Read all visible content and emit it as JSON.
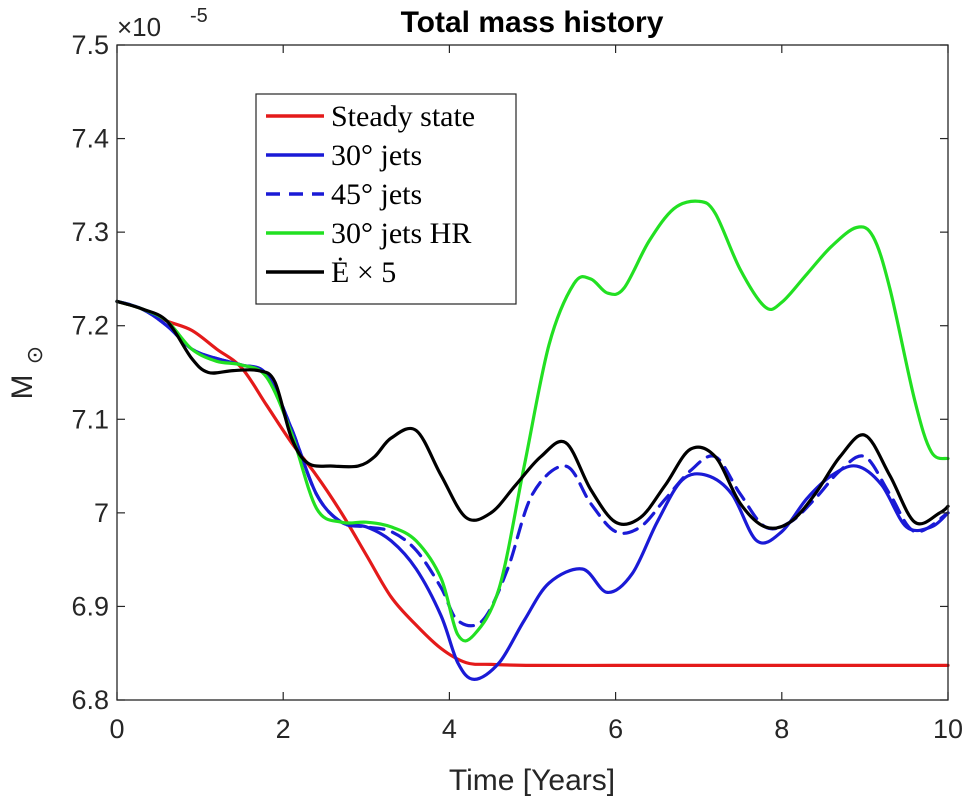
{
  "chart_data": {
    "type": "line",
    "title": "Total mass history",
    "xlabel": "Time [Years]",
    "ylabel": "M",
    "ylabel_sub": "⊙",
    "exponent": {
      "base": "×10",
      "power": "-5"
    },
    "xlim": [
      0,
      10
    ],
    "ylim": [
      6.8,
      7.5
    ],
    "xticks": [
      0,
      2,
      4,
      6,
      8,
      10
    ],
    "xtick_labels": [
      "0",
      "2",
      "4",
      "6",
      "8",
      "10"
    ],
    "yticks": [
      6.8,
      6.9,
      7.0,
      7.1,
      7.2,
      7.3,
      7.4,
      7.5
    ],
    "ytick_labels": [
      "6.8",
      "6.9",
      "7",
      "7.1",
      "7.2",
      "7.3",
      "7.4",
      "7.5"
    ],
    "grid": false,
    "legend_position": "top-left",
    "series": [
      {
        "name": "Steady state",
        "legend_label": "Steady state",
        "color": "#e41a1a",
        "dash": "solid",
        "x": [
          0,
          0.3,
          0.6,
          0.9,
          1.2,
          1.5,
          1.8,
          2.1,
          2.4,
          2.7,
          3.0,
          3.3,
          3.6,
          3.9,
          4.2,
          4.5,
          5.0,
          6.0,
          7.0,
          8.0,
          9.0,
          10.0
        ],
        "y": [
          7.226,
          7.218,
          7.205,
          7.195,
          7.175,
          7.155,
          7.115,
          7.075,
          7.04,
          7.0,
          6.955,
          6.91,
          6.88,
          6.855,
          6.84,
          6.838,
          6.837,
          6.837,
          6.837,
          6.837,
          6.837,
          6.837
        ]
      },
      {
        "name": "30° jets",
        "legend_label": "30° jets",
        "color": "#1a1ad6",
        "dash": "solid",
        "x": [
          0,
          0.3,
          0.6,
          0.9,
          1.2,
          1.5,
          1.8,
          2.1,
          2.4,
          2.7,
          3.0,
          3.3,
          3.6,
          3.9,
          4.1,
          4.3,
          4.6,
          4.9,
          5.2,
          5.6,
          5.9,
          6.2,
          6.5,
          6.8,
          7.1,
          7.4,
          7.7,
          8.0,
          8.3,
          8.6,
          8.9,
          9.2,
          9.5,
          9.8,
          10.0
        ],
        "y": [
          7.226,
          7.218,
          7.2,
          7.175,
          7.165,
          7.158,
          7.148,
          7.09,
          7.02,
          6.99,
          6.985,
          6.97,
          6.94,
          6.89,
          6.84,
          6.822,
          6.84,
          6.885,
          6.925,
          6.94,
          6.915,
          6.935,
          6.99,
          7.035,
          7.04,
          7.02,
          6.97,
          6.98,
          7.015,
          7.04,
          7.05,
          7.03,
          6.985,
          6.985,
          7.0
        ]
      },
      {
        "name": "45° jets",
        "legend_label": "45° jets",
        "color": "#1a1ad6",
        "dash": "dashed",
        "x": [
          0,
          0.3,
          0.6,
          0.9,
          1.2,
          1.5,
          1.8,
          2.1,
          2.4,
          2.7,
          3.0,
          3.3,
          3.6,
          3.9,
          4.1,
          4.4,
          4.7,
          5.0,
          5.4,
          5.7,
          6.0,
          6.3,
          6.6,
          6.9,
          7.2,
          7.5,
          7.8,
          8.1,
          8.4,
          8.7,
          9.0,
          9.3,
          9.6,
          10.0
        ],
        "y": [
          7.226,
          7.218,
          7.2,
          7.175,
          7.165,
          7.158,
          7.148,
          7.09,
          7.02,
          6.99,
          6.985,
          6.98,
          6.96,
          6.92,
          6.885,
          6.885,
          6.94,
          7.02,
          7.05,
          7.01,
          6.98,
          6.985,
          7.015,
          7.045,
          7.06,
          7.02,
          6.985,
          6.99,
          7.015,
          7.045,
          7.06,
          7.02,
          6.98,
          7.0
        ]
      },
      {
        "name": "30° jets HR",
        "legend_label": "30° jets HR",
        "color": "#22e022",
        "dash": "solid",
        "x": [
          0,
          0.3,
          0.6,
          0.9,
          1.2,
          1.5,
          1.8,
          2.1,
          2.4,
          2.7,
          3.0,
          3.3,
          3.6,
          3.9,
          4.1,
          4.3,
          4.6,
          4.9,
          5.2,
          5.5,
          5.7,
          5.9,
          6.1,
          6.4,
          6.7,
          7.0,
          7.2,
          7.5,
          7.8,
          8.0,
          8.3,
          8.6,
          8.9,
          9.1,
          9.3,
          9.6,
          9.8,
          10.0
        ],
        "y": [
          7.226,
          7.218,
          7.205,
          7.175,
          7.162,
          7.158,
          7.145,
          7.085,
          7.005,
          6.99,
          6.99,
          6.985,
          6.97,
          6.93,
          6.87,
          6.87,
          6.92,
          7.05,
          7.18,
          7.245,
          7.25,
          7.235,
          7.24,
          7.29,
          7.325,
          7.333,
          7.32,
          7.26,
          7.22,
          7.225,
          7.255,
          7.285,
          7.305,
          7.295,
          7.24,
          7.12,
          7.065,
          7.058
        ]
      },
      {
        "name": "Edot x 5",
        "legend_label": "Ė × 5",
        "color": "#000000",
        "dash": "solid",
        "x": [
          0,
          0.3,
          0.6,
          0.9,
          1.1,
          1.4,
          1.7,
          1.9,
          2.1,
          2.3,
          2.6,
          2.9,
          3.1,
          3.3,
          3.6,
          3.9,
          4.2,
          4.5,
          4.8,
          5.1,
          5.4,
          5.7,
          6.0,
          6.3,
          6.6,
          6.9,
          7.2,
          7.5,
          7.8,
          8.1,
          8.4,
          8.7,
          9.0,
          9.3,
          9.6,
          9.9,
          10.0
        ],
        "y": [
          7.226,
          7.218,
          7.205,
          7.165,
          7.15,
          7.152,
          7.152,
          7.14,
          7.08,
          7.053,
          7.05,
          7.05,
          7.06,
          7.08,
          7.088,
          7.04,
          6.995,
          7.0,
          7.03,
          7.06,
          7.075,
          7.025,
          6.99,
          6.995,
          7.03,
          7.068,
          7.06,
          7.01,
          6.985,
          6.99,
          7.02,
          7.06,
          7.083,
          7.04,
          6.99,
          7.0,
          7.007
        ]
      }
    ]
  }
}
